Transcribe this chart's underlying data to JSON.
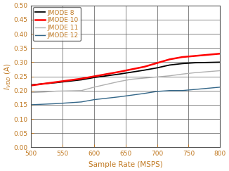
{
  "xlabel": "Sample Rate (MSPS)",
  "ylabel": "I_{VDD} (A)",
  "xlim": [
    500,
    800
  ],
  "ylim": [
    0,
    0.5
  ],
  "yticks": [
    0,
    0.05,
    0.1,
    0.15,
    0.2,
    0.25,
    0.3,
    0.35,
    0.4,
    0.45,
    0.5
  ],
  "xticks": [
    500,
    550,
    600,
    650,
    700,
    750,
    800
  ],
  "lines": [
    {
      "label": "JMODE 8",
      "color": "#000000",
      "linewidth": 1.3,
      "x": [
        500,
        520,
        540,
        560,
        580,
        600,
        620,
        640,
        660,
        680,
        700,
        720,
        740,
        760,
        800
      ],
      "y": [
        0.22,
        0.224,
        0.228,
        0.233,
        0.238,
        0.246,
        0.252,
        0.258,
        0.265,
        0.272,
        0.28,
        0.29,
        0.295,
        0.298,
        0.3
      ]
    },
    {
      "label": "JMODE 10",
      "color": "#ff0000",
      "linewidth": 1.8,
      "x": [
        500,
        520,
        540,
        560,
        580,
        600,
        620,
        640,
        660,
        680,
        700,
        720,
        740,
        760,
        800
      ],
      "y": [
        0.218,
        0.224,
        0.23,
        0.236,
        0.242,
        0.25,
        0.258,
        0.266,
        0.275,
        0.284,
        0.297,
        0.31,
        0.318,
        0.322,
        0.33
      ]
    },
    {
      "label": "JMODE 11",
      "color": "#b0b0b0",
      "linewidth": 1.0,
      "x": [
        500,
        520,
        540,
        560,
        580,
        600,
        620,
        640,
        660,
        680,
        700,
        720,
        740,
        760,
        800
      ],
      "y": [
        0.193,
        0.195,
        0.198,
        0.199,
        0.2,
        0.212,
        0.222,
        0.232,
        0.24,
        0.244,
        0.248,
        0.252,
        0.258,
        0.263,
        0.27
      ]
    },
    {
      "label": "JMODE 12",
      "color": "#336688",
      "linewidth": 1.0,
      "x": [
        500,
        520,
        540,
        560,
        580,
        600,
        620,
        640,
        660,
        680,
        700,
        720,
        740,
        760,
        800
      ],
      "y": [
        0.15,
        0.152,
        0.154,
        0.157,
        0.16,
        0.168,
        0.173,
        0.178,
        0.184,
        0.19,
        0.197,
        0.2,
        0.2,
        0.204,
        0.212
      ]
    }
  ],
  "legend_loc": "upper left",
  "label_color": "#c07820",
  "tick_color": "#c07820",
  "grid_color": "#555555",
  "spine_color": "#555555",
  "bg_color": "#ffffff",
  "figsize": [
    3.26,
    2.43
  ],
  "dpi": 100,
  "font_size_tick": 6.5,
  "font_size_label": 7.5,
  "font_size_legend": 6.5
}
